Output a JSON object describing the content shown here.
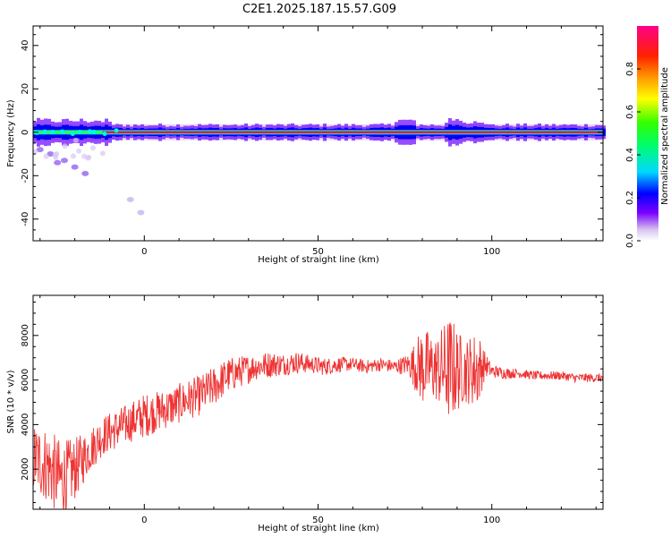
{
  "title": "C2E1.2025.187.15.57.G09",
  "chart_data": [
    {
      "type": "heatmap",
      "xlabel": "Height of straight line (km)",
      "ylabel": "Frequency (Hz)",
      "xlim": [
        -32,
        132
      ],
      "ylim": [
        -50,
        49
      ],
      "xticks": [
        "0",
        "50",
        "100"
      ],
      "xtick_values": [
        0,
        50,
        100
      ],
      "yticks": [
        "40",
        "20",
        "0",
        "-20",
        "-40"
      ],
      "ytick_values": [
        40,
        20,
        0,
        -20,
        -40
      ],
      "colorbar": {
        "label": "Normalized spectral amplitude",
        "ticks": [
          "0.0",
          "0.2",
          "0.4",
          "0.6",
          "0.8"
        ],
        "tick_values": [
          0.0,
          0.2,
          0.4,
          0.6,
          0.8
        ],
        "range": [
          0,
          1
        ]
      },
      "band": {
        "center_hz": 0,
        "color_peak": "#ff0040"
      },
      "scatter_tail": [
        {
          "x": -30,
          "y": -8
        },
        {
          "x": -27,
          "y": -10
        },
        {
          "x": -25,
          "y": -14
        },
        {
          "x": -23,
          "y": -13
        },
        {
          "x": -20,
          "y": -16
        },
        {
          "x": -17,
          "y": -19
        },
        {
          "x": -4,
          "y": -31
        },
        {
          "x": -1,
          "y": -37
        }
      ]
    },
    {
      "type": "line",
      "xlabel": "Height of straight line (km)",
      "ylabel": "SNR (10 * v/v)",
      "xlim": [
        -32,
        132
      ],
      "ylim": [
        200,
        9800
      ],
      "xticks": [
        "0",
        "50",
        "100"
      ],
      "xtick_values": [
        0,
        50,
        100
      ],
      "yticks": [
        "2000",
        "4000",
        "6000",
        "8000"
      ],
      "ytick_values": [
        2000,
        4000,
        6000,
        8000
      ],
      "color": "#ee3333",
      "series": [
        {
          "x": [
            -32,
            -28,
            -24,
            -20,
            -16,
            -12,
            -8,
            -4,
            0,
            4,
            8,
            12,
            16,
            20,
            24,
            28,
            32,
            36,
            40,
            44,
            48,
            52,
            56,
            60,
            64,
            68,
            72,
            76,
            80,
            84,
            88,
            92,
            96,
            98,
            100,
            104,
            108,
            112,
            116,
            120,
            124,
            128,
            132
          ],
          "values": [
            2500,
            2200,
            1500,
            2000,
            2800,
            3500,
            3800,
            4100,
            4400,
            4600,
            4800,
            5100,
            5300,
            5700,
            6200,
            6400,
            6600,
            6700,
            6700,
            6800,
            6700,
            6600,
            6700,
            6700,
            6600,
            6700,
            6600,
            6700,
            6600,
            6500,
            6500,
            6400,
            6500,
            6700,
            6400,
            6300,
            6300,
            6200,
            6200,
            6200,
            6100,
            6100,
            6100
          ],
          "noise": [
            1600,
            1700,
            1800,
            1400,
            1000,
            900,
            900,
            900,
            1000,
            900,
            900,
            900,
            900,
            900,
            800,
            700,
            600,
            600,
            500,
            500,
            400,
            400,
            350,
            300,
            300,
            300,
            300,
            500,
            1800,
            1500,
            2500,
            1400,
            1800,
            600,
            300,
            250,
            200,
            200,
            200,
            200,
            200,
            200,
            200
          ]
        }
      ]
    }
  ]
}
